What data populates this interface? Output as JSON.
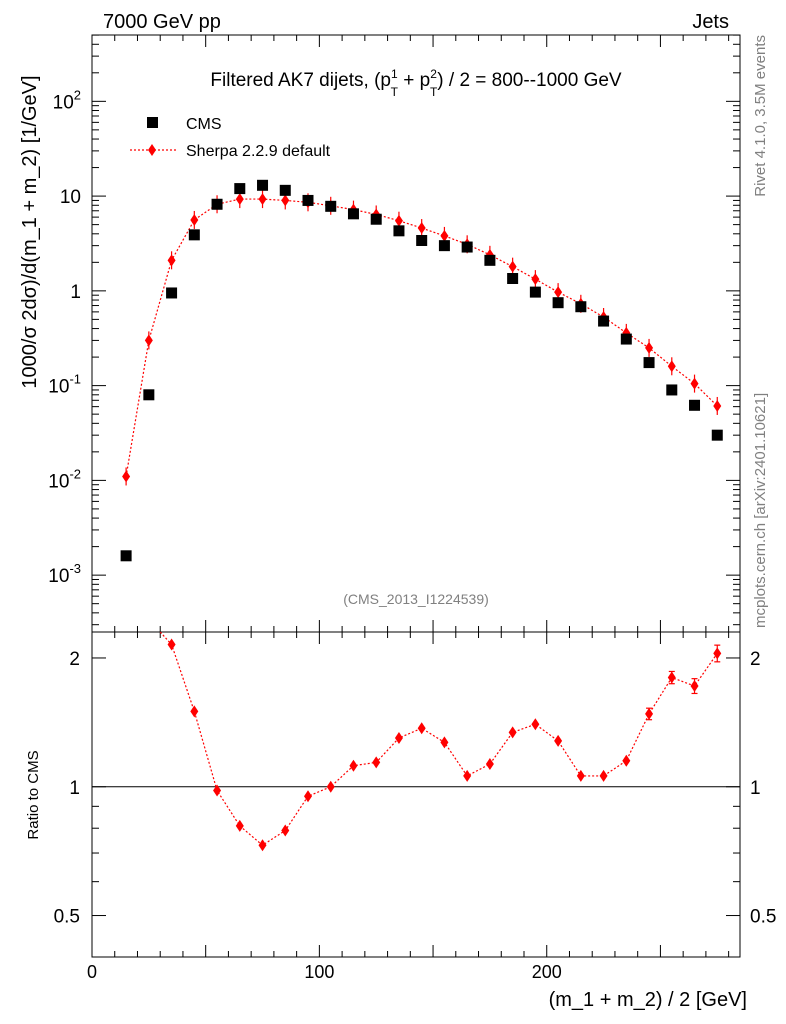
{
  "header": {
    "left": "7000 GeV pp",
    "right": "Jets"
  },
  "side_labels": {
    "rivet": "Rivet 4.1.0,  3.5M events",
    "mcplots": "mcplots.cern.ch [arXiv:2401.10621]"
  },
  "chart_data": {
    "type": "scatter",
    "title_parts": {
      "pre": "Filtered AK7 dijets, (p",
      "sup1": "1",
      "sub1": "T",
      "mid": " + p",
      "sup2": "2",
      "sub2": "T",
      "post": ") / 2 = 800--1000 GeV"
    },
    "analysis_id": "(CMS_2013_I1224539)",
    "xlabel": "(m_1 + m_2) / 2 [GeV]",
    "ylabel": "1000/σ   2dσ)/d(m_1 + m_2) [1/GeV]",
    "ratio_ylabel": "Ratio to CMS",
    "xlim": [
      0,
      285
    ],
    "ylim_log10": [
      -3.6,
      2.7
    ],
    "ratio_ylim": [
      0.4,
      2.3
    ],
    "x_ticks": [
      0,
      100,
      200
    ],
    "y_ticks": [
      {
        "label": "10",
        "exp": "-3",
        "value": 0.001
      },
      {
        "label": "10",
        "exp": "-2",
        "value": 0.01
      },
      {
        "label": "10",
        "exp": "-1",
        "value": 0.1
      },
      {
        "label": "1",
        "exp": "",
        "value": 1
      },
      {
        "label": "10",
        "exp": "",
        "value": 10
      },
      {
        "label": "10",
        "exp": "2",
        "value": 100
      }
    ],
    "ratio_ticks": [
      {
        "label": "0.5",
        "value": 0.5
      },
      {
        "label": "1",
        "value": 1
      },
      {
        "label": "2",
        "value": 2
      }
    ],
    "x": [
      15,
      25,
      35,
      45,
      55,
      65,
      75,
      85,
      95,
      105,
      115,
      125,
      135,
      145,
      155,
      165,
      175,
      185,
      195,
      205,
      215,
      225,
      235,
      245,
      255,
      265,
      275
    ],
    "series": [
      {
        "name": "CMS",
        "color": "#000000",
        "marker": "square",
        "values": [
          0.0016,
          0.08,
          0.95,
          3.9,
          8.2,
          12.0,
          13.0,
          11.5,
          9.0,
          7.8,
          6.5,
          5.7,
          4.3,
          3.4,
          3.0,
          2.9,
          2.1,
          1.35,
          0.97,
          0.75,
          0.68,
          0.48,
          0.31,
          0.175,
          0.09,
          0.062,
          0.03
        ]
      },
      {
        "name": "Sherpa 2.2.9 default",
        "color": "#ff0000",
        "marker": "diamond",
        "values": [
          0.011,
          0.3,
          2.1,
          5.6,
          8.2,
          9.3,
          9.3,
          9.0,
          8.6,
          7.9,
          7.2,
          6.4,
          5.5,
          4.6,
          3.8,
          3.1,
          2.4,
          1.8,
          1.33,
          0.97,
          0.73,
          0.53,
          0.36,
          0.25,
          0.16,
          0.105,
          0.061
        ]
      }
    ],
    "ratio": {
      "x": [
        35,
        45,
        55,
        65,
        75,
        85,
        95,
        105,
        115,
        125,
        135,
        145,
        155,
        165,
        175,
        185,
        195,
        205,
        215,
        225,
        235,
        245,
        255,
        265,
        275
      ],
      "values": [
        2.15,
        1.5,
        0.98,
        0.81,
        0.73,
        0.79,
        0.95,
        1.0,
        1.12,
        1.14,
        1.3,
        1.37,
        1.27,
        1.06,
        1.13,
        1.34,
        1.4,
        1.28,
        1.06,
        1.06,
        1.15,
        1.48,
        1.8,
        1.72,
        2.05
      ],
      "errors": [
        0.02,
        0.02,
        0.01,
        0.01,
        0.01,
        0.01,
        0.01,
        0.01,
        0.01,
        0.01,
        0.01,
        0.01,
        0.01,
        0.01,
        0.01,
        0.01,
        0.01,
        0.01,
        0.01,
        0.01,
        0.02,
        0.03,
        0.04,
        0.05,
        0.07
      ]
    }
  }
}
